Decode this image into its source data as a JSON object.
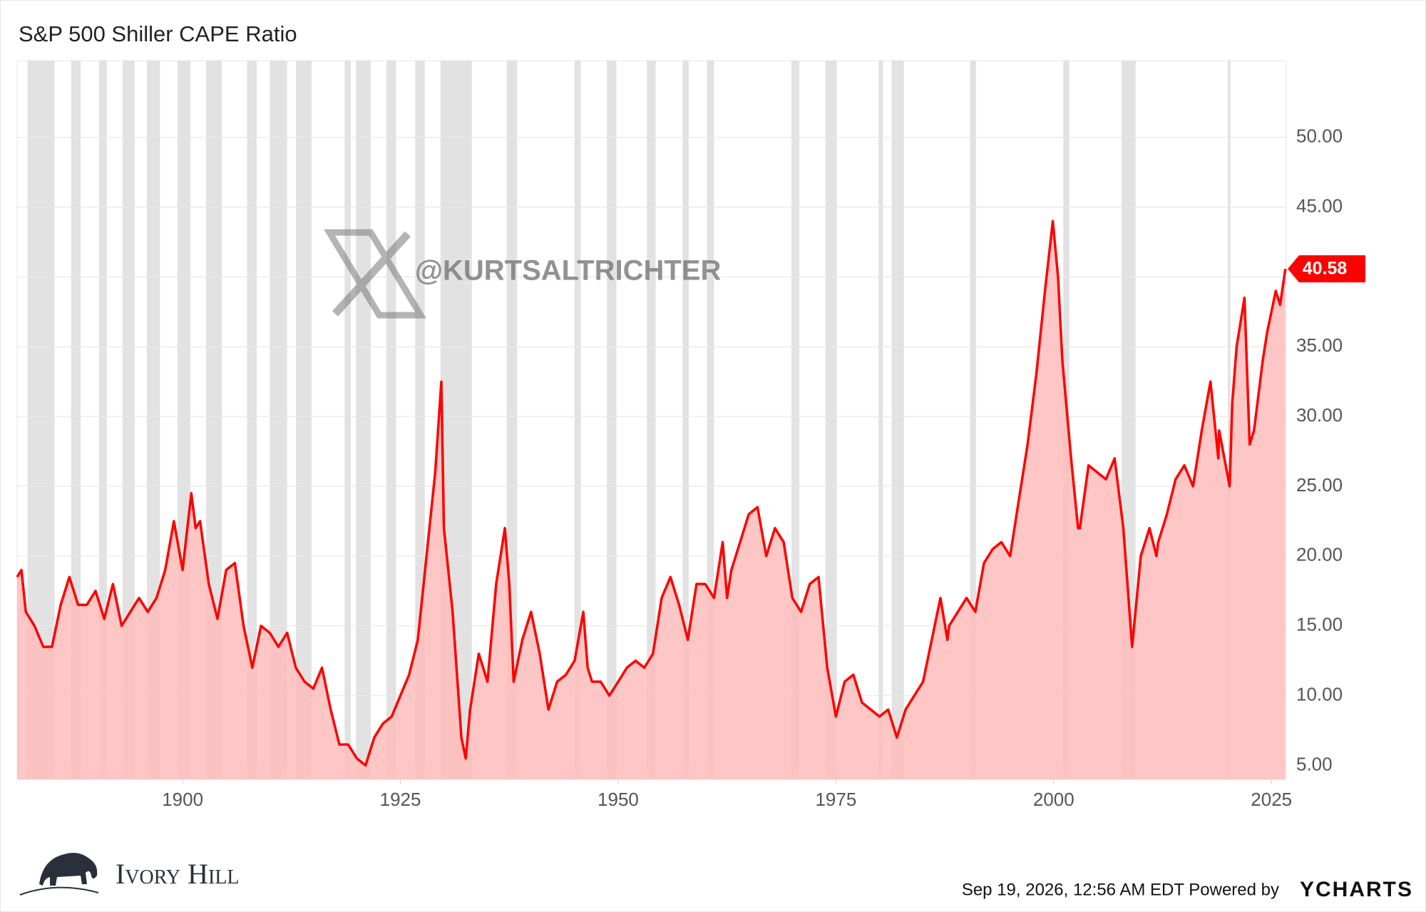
{
  "chart_data": {
    "type": "area",
    "title": "S&P 500 Shiller CAPE Ratio",
    "watermark": "@KURTSALTRICHTER",
    "brand": "Ivory Hill",
    "footer": "Sep 19, 2026, 12:56 AM EDT Powered by",
    "footer_logo": "YCHARTS",
    "color": "#ff0000",
    "fill": "#ffbcbc",
    "recession_color": "#e2e2e2",
    "grid": true,
    "xlim": [
      1881,
      2026.7
    ],
    "ylim": [
      4,
      55.5
    ],
    "xticks": [
      1900,
      1925,
      1950,
      1975,
      2000,
      2025
    ],
    "yticks": [
      {
        "value": 5,
        "label": "5.00"
      },
      {
        "value": 10,
        "label": "10.00"
      },
      {
        "value": 15,
        "label": "15.00"
      },
      {
        "value": 20,
        "label": "20.00"
      },
      {
        "value": 25,
        "label": "25.00"
      },
      {
        "value": 30,
        "label": "30.00"
      },
      {
        "value": 35,
        "label": "35.00"
      },
      {
        "value": 40,
        "label": "40.00"
      },
      {
        "value": 45,
        "label": "45.00"
      },
      {
        "value": 50,
        "label": "50.00"
      }
    ],
    "recessions": [
      [
        1882.2,
        1885.3
      ],
      [
        1887.2,
        1888.3
      ],
      [
        1890.4,
        1891.3
      ],
      [
        1893.1,
        1894.5
      ],
      [
        1895.9,
        1897.4
      ],
      [
        1899.4,
        1900.9
      ],
      [
        1902.7,
        1904.5
      ],
      [
        1907.4,
        1908.5
      ],
      [
        1910.0,
        1912.0
      ],
      [
        1913.0,
        1914.8
      ],
      [
        1918.6,
        1919.3
      ],
      [
        1919.9,
        1921.6
      ],
      [
        1923.4,
        1924.5
      ],
      [
        1926.7,
        1927.8
      ],
      [
        1929.6,
        1933.2
      ],
      [
        1937.2,
        1938.4
      ],
      [
        1945.0,
        1945.7
      ],
      [
        1948.7,
        1949.8
      ],
      [
        1953.3,
        1954.3
      ],
      [
        1957.4,
        1958.1
      ],
      [
        1960.2,
        1961.0
      ],
      [
        1969.9,
        1970.8
      ],
      [
        1973.8,
        1975.1
      ],
      [
        1979.9,
        1980.4
      ],
      [
        1981.4,
        1982.8
      ],
      [
        1990.4,
        1991.1
      ],
      [
        2001.1,
        2001.8
      ],
      [
        2007.8,
        2009.4
      ],
      [
        2020.0,
        2020.3
      ]
    ],
    "x": [
      1881,
      1881.5,
      1882,
      1883,
      1884,
      1885,
      1886,
      1887,
      1888,
      1889,
      1890,
      1891,
      1892,
      1893,
      1894,
      1895,
      1896,
      1897,
      1898,
      1899,
      1900,
      1901,
      1901.5,
      1902,
      1903,
      1904,
      1905,
      1906,
      1907,
      1908,
      1909,
      1910,
      1911,
      1912,
      1913,
      1914,
      1915,
      1916,
      1917,
      1918,
      1919,
      1920,
      1921,
      1922,
      1923,
      1924,
      1925,
      1926,
      1927,
      1928,
      1929,
      1929.7,
      1930,
      1931,
      1932,
      1932.5,
      1933,
      1934,
      1935,
      1936,
      1937,
      1937.5,
      1938,
      1939,
      1940,
      1941,
      1942,
      1943,
      1944,
      1945,
      1946,
      1946.5,
      1947,
      1948,
      1949,
      1950,
      1951,
      1952,
      1953,
      1954,
      1955,
      1956,
      1957,
      1958,
      1959,
      1960,
      1961,
      1962,
      1962.5,
      1963,
      1964,
      1965,
      1966,
      1967,
      1968,
      1969,
      1970,
      1971,
      1972,
      1973,
      1974,
      1975,
      1976,
      1977,
      1978,
      1979,
      1980,
      1981,
      1982,
      1983,
      1984,
      1985,
      1986,
      1987,
      1987.8,
      1988,
      1989,
      1990,
      1991,
      1992,
      1993,
      1994,
      1995,
      1996,
      1997,
      1998,
      1999,
      1999.9,
      2000.5,
      2001,
      2002,
      2002.8,
      2003,
      2004,
      2005,
      2006,
      2007,
      2008,
      2009,
      2010,
      2011,
      2011.8,
      2012,
      2013,
      2014,
      2015,
      2016,
      2017,
      2018,
      2018.9,
      2019,
      2020.2,
      2020.5,
      2021,
      2021.9,
      2022.5,
      2023,
      2024,
      2024.5,
      2025,
      2025.5,
      2026,
      2026.6
    ],
    "values": [
      18.5,
      19,
      16,
      15,
      13.5,
      13.5,
      16.5,
      18.5,
      16.5,
      16.5,
      17.5,
      15.5,
      18,
      15,
      16,
      17,
      16,
      17,
      19,
      22.5,
      19,
      24.5,
      22,
      22.5,
      18,
      15.5,
      19,
      19.5,
      15,
      12,
      15,
      14.5,
      13.5,
      14.5,
      12,
      11,
      10.5,
      12,
      9,
      6.5,
      6.5,
      5.5,
      5,
      7,
      8,
      8.5,
      10,
      11.5,
      14,
      20,
      26,
      32.5,
      22,
      16,
      7,
      5.5,
      9,
      13,
      11,
      18,
      22,
      18,
      11,
      14,
      16,
      13,
      9,
      11,
      11.5,
      12.5,
      16,
      12,
      11,
      11,
      10,
      11,
      12,
      12.5,
      12,
      13,
      17,
      18.5,
      16.5,
      14,
      18,
      18,
      17,
      21,
      17,
      19,
      21,
      23,
      23.5,
      20,
      22,
      21,
      17,
      16,
      18,
      18.5,
      12,
      8.5,
      11,
      11.5,
      9.5,
      9,
      8.5,
      9,
      7,
      9,
      10,
      11,
      14,
      17,
      14,
      15,
      16,
      17,
      16,
      19.5,
      20.5,
      21,
      20,
      24,
      28,
      33,
      39,
      44,
      40,
      34,
      27,
      22,
      22,
      26.5,
      26,
      25.5,
      27,
      22,
      13.5,
      20,
      22,
      20,
      21,
      23,
      25.5,
      26.5,
      25,
      29,
      32.5,
      27,
      29,
      25,
      31,
      35,
      38.5,
      28,
      29,
      34,
      36,
      37.5,
      39,
      38,
      40.58
    ]
  }
}
